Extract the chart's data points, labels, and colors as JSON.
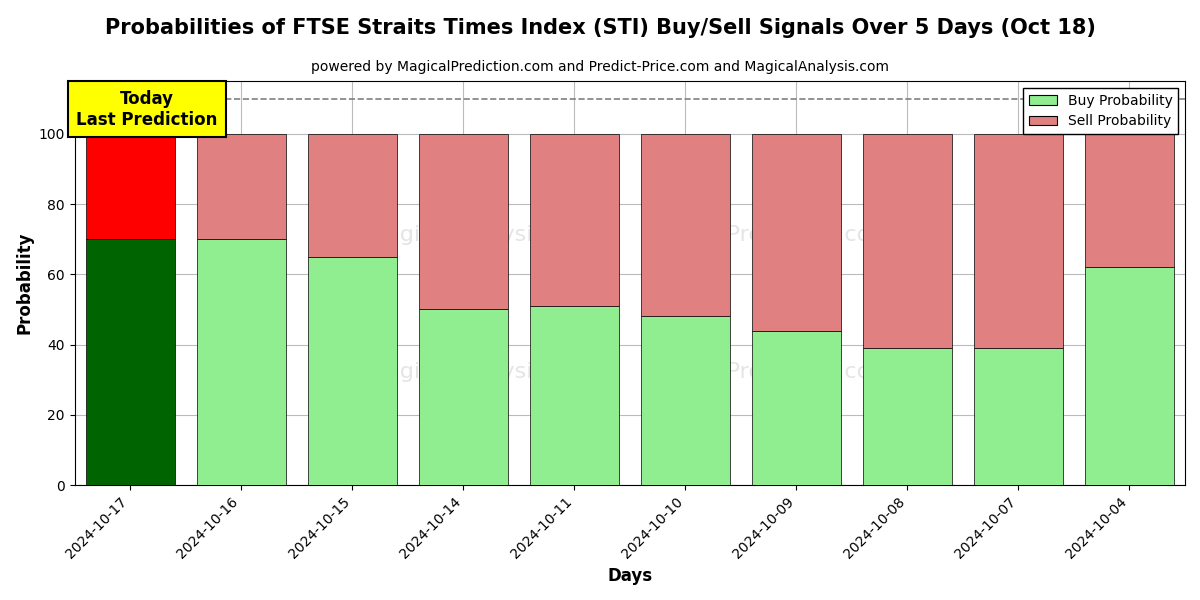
{
  "title": "Probabilities of FTSE Straits Times Index (STI) Buy/Sell Signals Over 5 Days (Oct 18)",
  "subtitle": "powered by MagicalPrediction.com and Predict-Price.com and MagicalAnalysis.com",
  "xlabel": "Days",
  "ylabel": "Probability",
  "dates": [
    "2024-10-17",
    "2024-10-16",
    "2024-10-15",
    "2024-10-14",
    "2024-10-11",
    "2024-10-10",
    "2024-10-09",
    "2024-10-08",
    "2024-10-07",
    "2024-10-04"
  ],
  "buy_values": [
    70,
    70,
    65,
    50,
    51,
    48,
    44,
    39,
    39,
    62
  ],
  "sell_values": [
    30,
    30,
    35,
    50,
    49,
    52,
    56,
    61,
    61,
    38
  ],
  "first_bar_buy_color": "#006400",
  "first_bar_sell_color": "#FF0000",
  "other_bar_buy_color": "#90EE90",
  "other_bar_sell_color": "#E08080",
  "legend_buy_color": "#90EE90",
  "legend_sell_color": "#E08080",
  "today_label_text": "Today\nLast Prediction",
  "today_label_bg": "#FFFF00",
  "today_label_border": "#000000",
  "ylim": [
    0,
    115
  ],
  "dashed_line_y": 110,
  "grid_color": "#BBBBBB",
  "title_fontsize": 15,
  "subtitle_fontsize": 10,
  "label_fontsize": 12,
  "tick_fontsize": 10,
  "legend_fontsize": 10
}
